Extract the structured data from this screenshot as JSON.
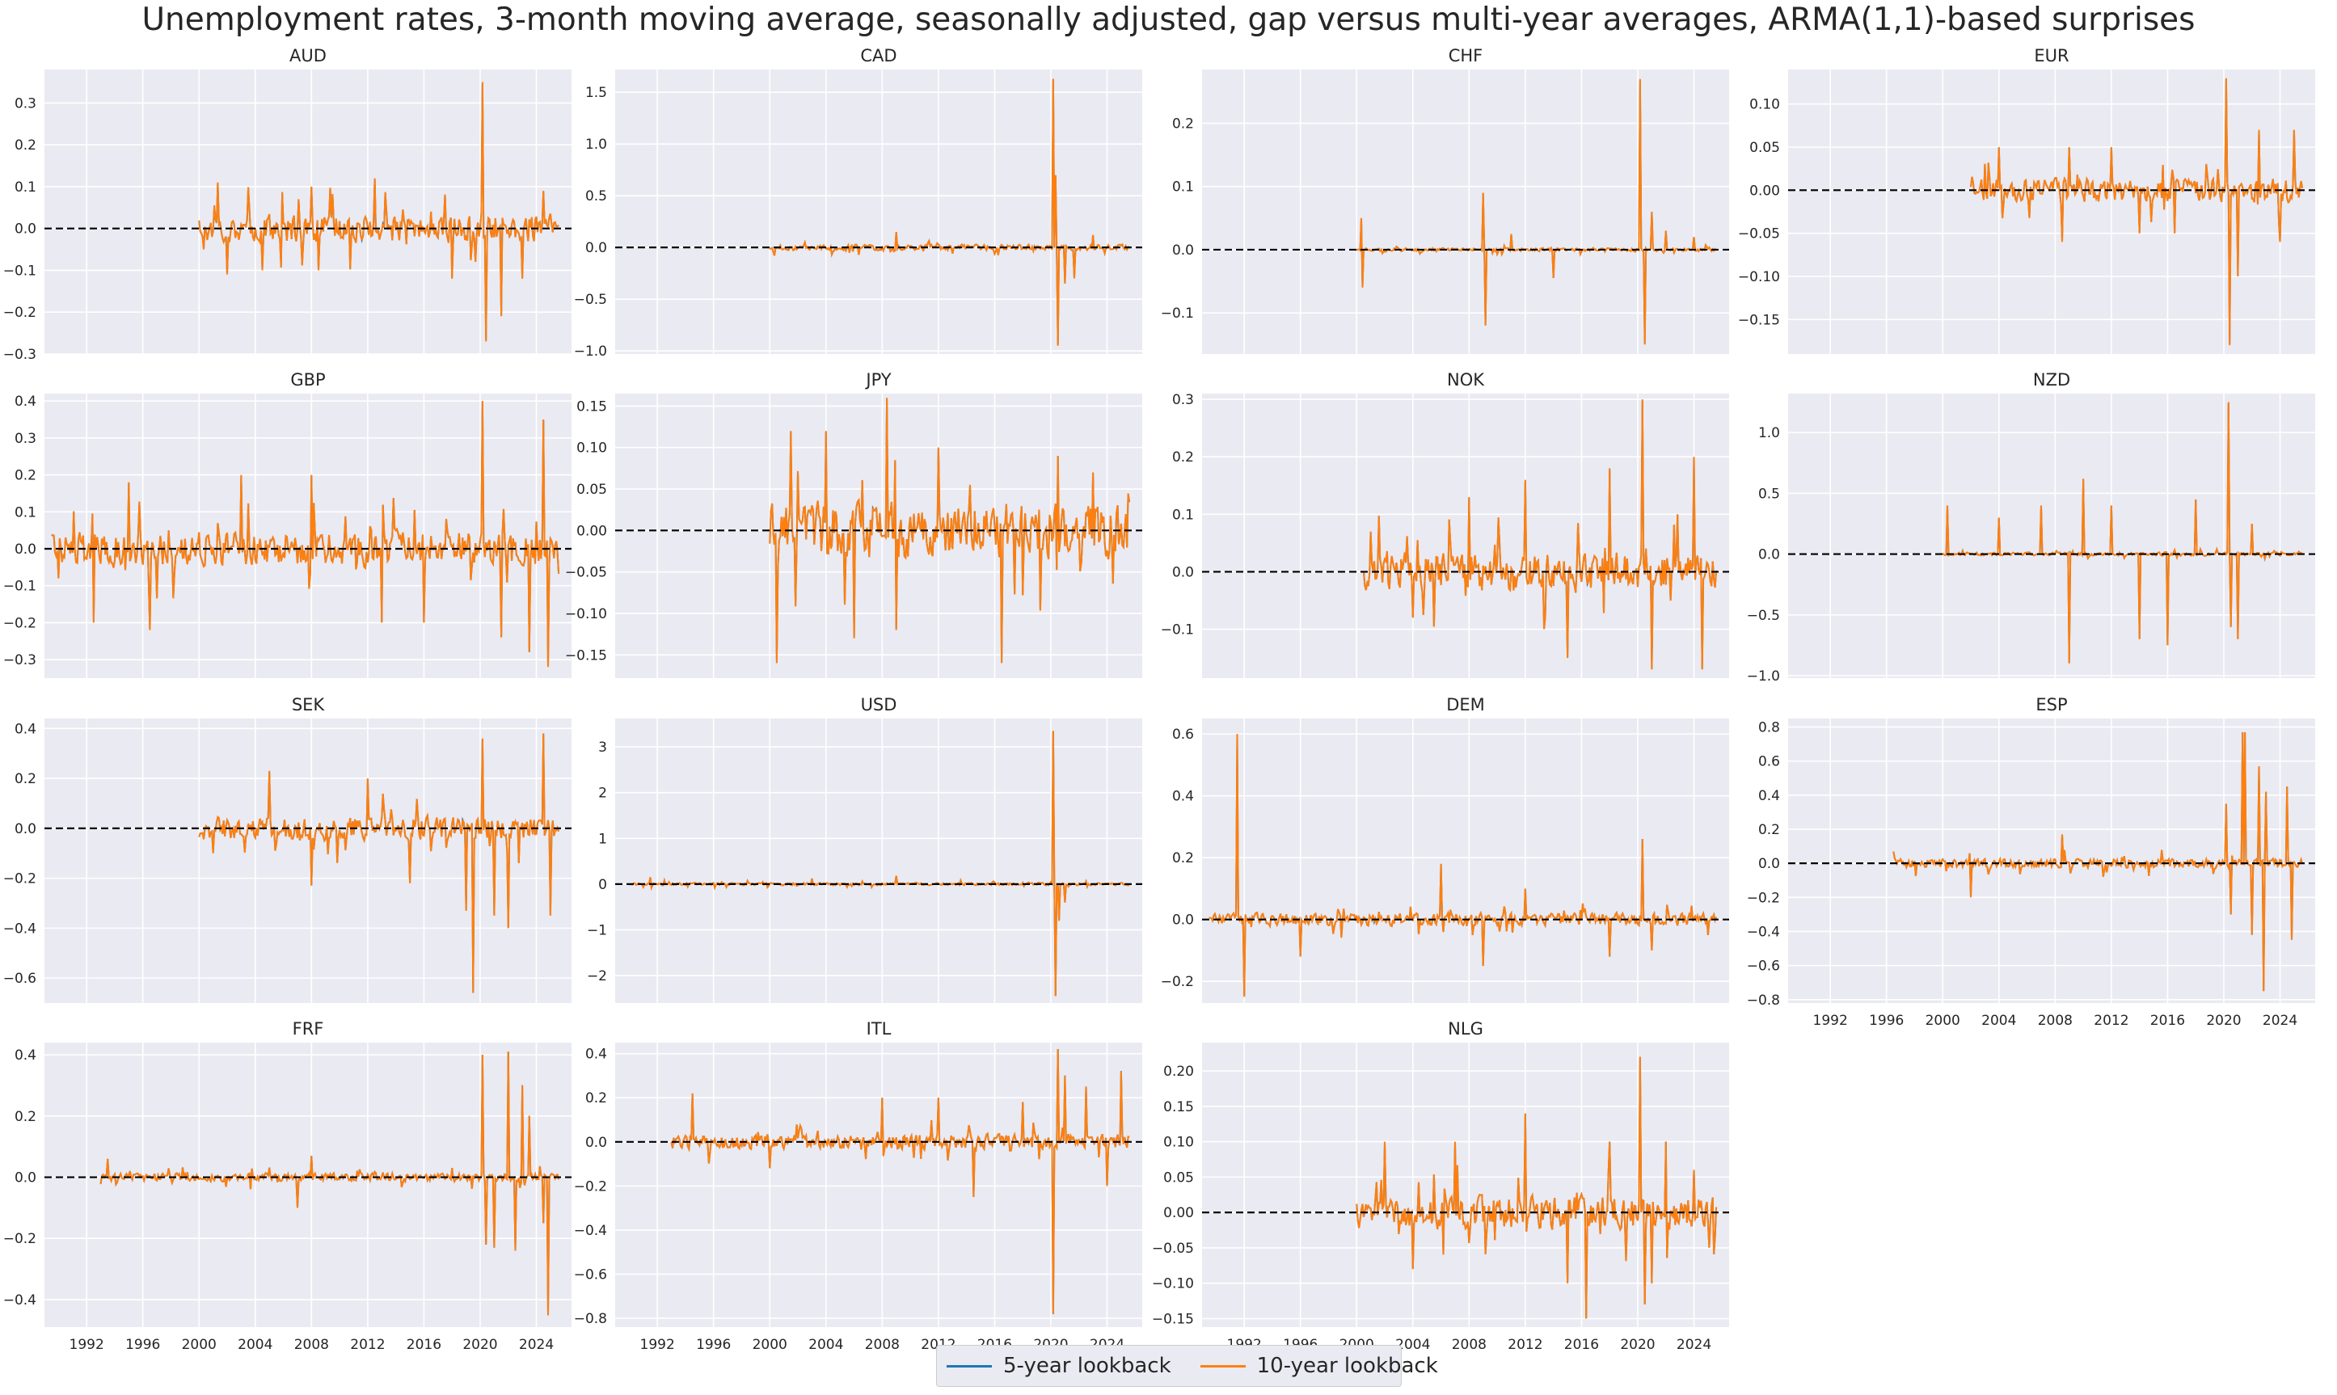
{
  "chart_data": {
    "type": "line",
    "title": "Unemployment rates, 3-month moving average, seasonally adjusted, gap versus multi-year averages, ARMA(1,1)-based surprises",
    "colors": {
      "five_year": "#1f77b4",
      "ten_year": "#ff7f0e",
      "zero_line": "#000000",
      "panel_bg": "#eaeaf2",
      "grid": "#ffffff"
    },
    "series_names": [
      "5-year lookback",
      "10-year lookback"
    ],
    "xlim": [
      1989,
      2026.5
    ],
    "x_ticks": [
      1992,
      1996,
      2000,
      2004,
      2008,
      2012,
      2016,
      2020,
      2024
    ],
    "x_tick_labels": [
      "1992",
      "1996",
      "2000",
      "2004",
      "2008",
      "2012",
      "2016",
      "2020",
      "2024"
    ],
    "grid": true,
    "legend_position": "bottom-center",
    "panels": [
      {
        "name": "AUD",
        "start": 2000.0,
        "ylim": [
          -0.3,
          0.38
        ],
        "yticks": [
          -0.3,
          -0.2,
          -0.1,
          0.0,
          0.1,
          0.2,
          0.3
        ],
        "ytick_labels": [
          "−0.3",
          "−0.2",
          "−0.1",
          "0.0",
          "0.1",
          "0.2",
          "0.3"
        ],
        "amp": 0.05,
        "spikes": [
          [
            2000.3,
            -0.05
          ],
          [
            2001.3,
            0.11
          ],
          [
            2002.0,
            -0.11
          ],
          [
            2004.5,
            -0.1
          ],
          [
            2008.0,
            0.1
          ],
          [
            2008.5,
            -0.1
          ],
          [
            2012.5,
            0.12
          ],
          [
            2018.0,
            -0.12
          ],
          [
            2020.2,
            0.35
          ],
          [
            2020.4,
            -0.27
          ],
          [
            2021.5,
            -0.21
          ],
          [
            2023.0,
            -0.12
          ],
          [
            2024.5,
            0.09
          ]
        ]
      },
      {
        "name": "CAD",
        "start": 2000.0,
        "ylim": [
          -1.03,
          1.72
        ],
        "yticks": [
          -1.0,
          -0.5,
          0.0,
          0.5,
          1.0,
          1.5
        ],
        "ytick_labels": [
          "−1.0",
          "−0.5",
          "0.0",
          "0.5",
          "1.0",
          "1.5"
        ],
        "amp": 0.04,
        "spikes": [
          [
            2000.3,
            -0.08
          ],
          [
            2002.5,
            0.05
          ],
          [
            2009.0,
            0.15
          ],
          [
            2013.0,
            -0.06
          ],
          [
            2020.2,
            1.63
          ],
          [
            2020.35,
            0.7
          ],
          [
            2020.5,
            -0.95
          ],
          [
            2021.0,
            -0.35
          ],
          [
            2021.7,
            -0.3
          ],
          [
            2023.0,
            0.12
          ]
        ]
      },
      {
        "name": "CHF",
        "start": 2000.0,
        "ylim": [
          -0.165,
          0.285
        ],
        "yticks": [
          -0.1,
          0.0,
          0.1,
          0.2
        ],
        "ytick_labels": [
          "−0.1",
          "0.0",
          "0.1",
          "0.2"
        ],
        "amp": 0.004,
        "spikes": [
          [
            2000.3,
            0.05
          ],
          [
            2000.4,
            -0.06
          ],
          [
            2009.0,
            0.09
          ],
          [
            2009.2,
            -0.12
          ],
          [
            2011.0,
            0.025
          ],
          [
            2014.0,
            -0.045
          ],
          [
            2020.2,
            0.27
          ],
          [
            2020.5,
            -0.15
          ],
          [
            2021.0,
            0.06
          ],
          [
            2022.0,
            0.03
          ],
          [
            2024.0,
            0.02
          ]
        ]
      },
      {
        "name": "EUR",
        "start": 2002.0,
        "ylim": [
          -0.19,
          0.14
        ],
        "yticks": [
          -0.15,
          -0.1,
          -0.05,
          0.0,
          0.05,
          0.1
        ],
        "ytick_labels": [
          "−0.15",
          "−0.10",
          "−0.05",
          "0.00",
          "0.05",
          "0.10"
        ],
        "amp": 0.02,
        "spikes": [
          [
            2004.0,
            0.05
          ],
          [
            2008.5,
            -0.06
          ],
          [
            2009.0,
            0.05
          ],
          [
            2012.0,
            0.05
          ],
          [
            2014.0,
            -0.05
          ],
          [
            2016.5,
            -0.05
          ],
          [
            2020.2,
            0.13
          ],
          [
            2020.4,
            -0.18
          ],
          [
            2021.0,
            -0.1
          ],
          [
            2022.5,
            0.07
          ],
          [
            2024.0,
            -0.06
          ],
          [
            2025.0,
            0.07
          ]
        ]
      },
      {
        "name": "GBP",
        "start": 1989.5,
        "ylim": [
          -0.35,
          0.42
        ],
        "yticks": [
          -0.3,
          -0.2,
          -0.1,
          0.0,
          0.1,
          0.2,
          0.3,
          0.4
        ],
        "ytick_labels": [
          "−0.3",
          "−0.2",
          "−0.1",
          "0.0",
          "0.1",
          "0.2",
          "0.3",
          "0.4"
        ],
        "amp": 0.07,
        "spikes": [
          [
            1990.0,
            -0.08
          ],
          [
            1992.5,
            -0.2
          ],
          [
            1995.0,
            0.18
          ],
          [
            1996.5,
            -0.22
          ],
          [
            2003.0,
            0.2
          ],
          [
            2008.0,
            0.2
          ],
          [
            2013.0,
            -0.2
          ],
          [
            2016.0,
            -0.2
          ],
          [
            2020.2,
            0.4
          ],
          [
            2021.5,
            -0.24
          ],
          [
            2023.5,
            -0.28
          ],
          [
            2024.5,
            0.35
          ],
          [
            2024.8,
            -0.32
          ]
        ]
      },
      {
        "name": "JPY",
        "start": 2000.0,
        "ylim": [
          -0.178,
          0.165
        ],
        "yticks": [
          -0.15,
          -0.1,
          -0.05,
          0.0,
          0.05,
          0.1,
          0.15
        ],
        "ytick_labels": [
          "−0.15",
          "−0.10",
          "−0.05",
          "0.00",
          "0.05",
          "0.10",
          "0.15"
        ],
        "amp": 0.05,
        "spikes": [
          [
            2000.5,
            -0.16
          ],
          [
            2001.5,
            0.12
          ],
          [
            2004.0,
            0.12
          ],
          [
            2006.0,
            -0.13
          ],
          [
            2008.3,
            0.16
          ],
          [
            2009.0,
            -0.12
          ],
          [
            2012.0,
            0.1
          ],
          [
            2016.5,
            -0.16
          ],
          [
            2020.5,
            0.09
          ],
          [
            2023.0,
            0.07
          ]
        ]
      },
      {
        "name": "NOK",
        "start": 2000.5,
        "ylim": [
          -0.185,
          0.31
        ],
        "yticks": [
          -0.1,
          0.0,
          0.1,
          0.2,
          0.3
        ],
        "ytick_labels": [
          "−0.1",
          "0.0",
          "0.1",
          "0.2",
          "0.3"
        ],
        "amp": 0.05,
        "spikes": [
          [
            2001.0,
            0.07
          ],
          [
            2004.0,
            -0.08
          ],
          [
            2008.0,
            0.13
          ],
          [
            2012.0,
            0.16
          ],
          [
            2015.0,
            -0.15
          ],
          [
            2018.0,
            0.18
          ],
          [
            2020.3,
            0.3
          ],
          [
            2021.0,
            -0.17
          ],
          [
            2022.8,
            0.1
          ],
          [
            2024.0,
            0.2
          ],
          [
            2024.6,
            -0.17
          ]
        ]
      },
      {
        "name": "NZD",
        "start": 2000.0,
        "ylim": [
          -1.02,
          1.32
        ],
        "yticks": [
          -1.0,
          -0.5,
          0.0,
          0.5,
          1.0
        ],
        "ytick_labels": [
          "−1.0",
          "−0.5",
          "0.0",
          "0.5",
          "1.0"
        ],
        "amp": 0.02,
        "spikes": [
          [
            2000.3,
            0.4
          ],
          [
            2004.0,
            0.3
          ],
          [
            2007.0,
            0.4
          ],
          [
            2009.0,
            -0.9
          ],
          [
            2010.0,
            0.62
          ],
          [
            2012.0,
            0.4
          ],
          [
            2014.0,
            -0.7
          ],
          [
            2016.0,
            -0.75
          ],
          [
            2018.0,
            0.45
          ],
          [
            2020.3,
            1.25
          ],
          [
            2020.5,
            -0.6
          ],
          [
            2021.0,
            -0.7
          ],
          [
            2022.0,
            0.25
          ]
        ]
      },
      {
        "name": "SEK",
        "start": 2000.0,
        "ylim": [
          -0.7,
          0.44
        ],
        "yticks": [
          -0.6,
          -0.4,
          -0.2,
          0.0,
          0.2,
          0.4
        ],
        "ytick_labels": [
          "−0.6",
          "−0.4",
          "−0.2",
          "0.0",
          "0.2",
          "0.4"
        ],
        "amp": 0.07,
        "spikes": [
          [
            2001.0,
            -0.1
          ],
          [
            2005.0,
            0.23
          ],
          [
            2008.0,
            -0.23
          ],
          [
            2012.0,
            0.2
          ],
          [
            2015.0,
            -0.22
          ],
          [
            2019.0,
            -0.33
          ],
          [
            2019.5,
            -0.66
          ],
          [
            2020.2,
            0.36
          ],
          [
            2021.0,
            -0.35
          ],
          [
            2022.0,
            -0.4
          ],
          [
            2024.5,
            0.38
          ],
          [
            2025.0,
            -0.35
          ]
        ]
      },
      {
        "name": "USD",
        "start": 1990.0,
        "ylim": [
          -2.6,
          3.62
        ],
        "yticks": [
          -2,
          -1,
          0,
          1,
          2,
          3
        ],
        "ytick_labels": [
          "−2",
          "−1",
          "0",
          "1",
          "2",
          "3"
        ],
        "amp": 0.04,
        "spikes": [
          [
            1991.5,
            0.15
          ],
          [
            2003.0,
            0.12
          ],
          [
            2009.0,
            0.18
          ],
          [
            2020.2,
            3.35
          ],
          [
            2020.35,
            -2.45
          ],
          [
            2020.6,
            -0.8
          ],
          [
            2021.0,
            -0.4
          ]
        ]
      },
      {
        "name": "DEM",
        "start": 1989.5,
        "ylim": [
          -0.27,
          0.65
        ],
        "yticks": [
          -0.2,
          0.0,
          0.2,
          0.4,
          0.6
        ],
        "ytick_labels": [
          "−0.2",
          "0.0",
          "0.2",
          "0.4",
          "0.6"
        ],
        "amp": 0.03,
        "spikes": [
          [
            1991.5,
            0.6
          ],
          [
            1992.0,
            -0.25
          ],
          [
            1996.0,
            -0.12
          ],
          [
            2006.0,
            0.18
          ],
          [
            2009.0,
            -0.15
          ],
          [
            2012.0,
            0.1
          ],
          [
            2018.0,
            -0.12
          ],
          [
            2020.3,
            0.26
          ],
          [
            2021.0,
            -0.1
          ],
          [
            2025.0,
            -0.05
          ]
        ]
      },
      {
        "name": "ESP",
        "start": 1996.5,
        "ylim": [
          -0.82,
          0.85
        ],
        "yticks": [
          -0.8,
          -0.6,
          -0.4,
          -0.2,
          0.0,
          0.2,
          0.4,
          0.6,
          0.8
        ],
        "ytick_labels": [
          "−0.8",
          "−0.6",
          "−0.4",
          "−0.2",
          "0.0",
          "0.2",
          "0.4",
          "0.6",
          "0.8"
        ],
        "amp": 0.04,
        "spikes": [
          [
            2002.0,
            -0.2
          ],
          [
            2008.5,
            0.17
          ],
          [
            2020.2,
            0.35
          ],
          [
            2020.5,
            -0.3
          ],
          [
            2021.3,
            0.77
          ],
          [
            2021.5,
            0.77
          ],
          [
            2022.0,
            -0.42
          ],
          [
            2022.5,
            0.57
          ],
          [
            2022.8,
            -0.75
          ],
          [
            2023.0,
            0.42
          ],
          [
            2024.5,
            0.45
          ],
          [
            2024.8,
            -0.45
          ]
        ]
      },
      {
        "name": "FRF",
        "start": 1993.0,
        "ylim": [
          -0.49,
          0.44
        ],
        "yticks": [
          -0.4,
          -0.2,
          0.0,
          0.2,
          0.4
        ],
        "ytick_labels": [
          "−0.4",
          "−0.2",
          "0.0",
          "0.2",
          "0.4"
        ],
        "amp": 0.02,
        "spikes": [
          [
            1993.5,
            0.06
          ],
          [
            2007.0,
            -0.1
          ],
          [
            2008.0,
            0.07
          ],
          [
            2020.2,
            0.4
          ],
          [
            2020.4,
            -0.22
          ],
          [
            2021.0,
            -0.23
          ],
          [
            2022.0,
            0.41
          ],
          [
            2022.5,
            -0.24
          ],
          [
            2023.0,
            0.3
          ],
          [
            2023.5,
            0.2
          ],
          [
            2024.5,
            -0.15
          ],
          [
            2024.8,
            -0.45
          ]
        ]
      },
      {
        "name": "ITL",
        "start": 1993.0,
        "ylim": [
          -0.84,
          0.45
        ],
        "yticks": [
          -0.8,
          -0.6,
          -0.4,
          -0.2,
          0.0,
          0.2,
          0.4
        ],
        "ytick_labels": [
          "−0.8",
          "−0.6",
          "−0.4",
          "−0.2",
          "0.0",
          "0.2",
          "0.4"
        ],
        "amp": 0.05,
        "spikes": [
          [
            1994.5,
            0.22
          ],
          [
            2000.0,
            -0.12
          ],
          [
            2008.0,
            0.2
          ],
          [
            2012.0,
            0.2
          ],
          [
            2014.5,
            -0.25
          ],
          [
            2018.0,
            0.18
          ],
          [
            2020.2,
            -0.78
          ],
          [
            2020.5,
            0.42
          ],
          [
            2021.0,
            0.3
          ],
          [
            2022.5,
            0.25
          ],
          [
            2024.0,
            -0.2
          ],
          [
            2025.0,
            0.32
          ]
        ]
      },
      {
        "name": "NLG",
        "start": 2000.0,
        "ylim": [
          -0.162,
          0.24
        ],
        "yticks": [
          -0.15,
          -0.1,
          -0.05,
          0.0,
          0.05,
          0.1,
          0.15,
          0.2
        ],
        "ytick_labels": [
          "−0.15",
          "−0.10",
          "−0.05",
          "0.00",
          "0.05",
          "0.10",
          "0.15",
          "0.20"
        ],
        "amp": 0.035,
        "spikes": [
          [
            2002.0,
            0.1
          ],
          [
            2004.0,
            -0.08
          ],
          [
            2007.0,
            0.1
          ],
          [
            2012.0,
            0.14
          ],
          [
            2015.0,
            -0.1
          ],
          [
            2016.3,
            -0.15
          ],
          [
            2018.0,
            0.1
          ],
          [
            2020.2,
            0.22
          ],
          [
            2020.5,
            -0.13
          ],
          [
            2021.0,
            -0.1
          ],
          [
            2022.0,
            0.1
          ],
          [
            2024.0,
            0.06
          ]
        ]
      }
    ]
  }
}
